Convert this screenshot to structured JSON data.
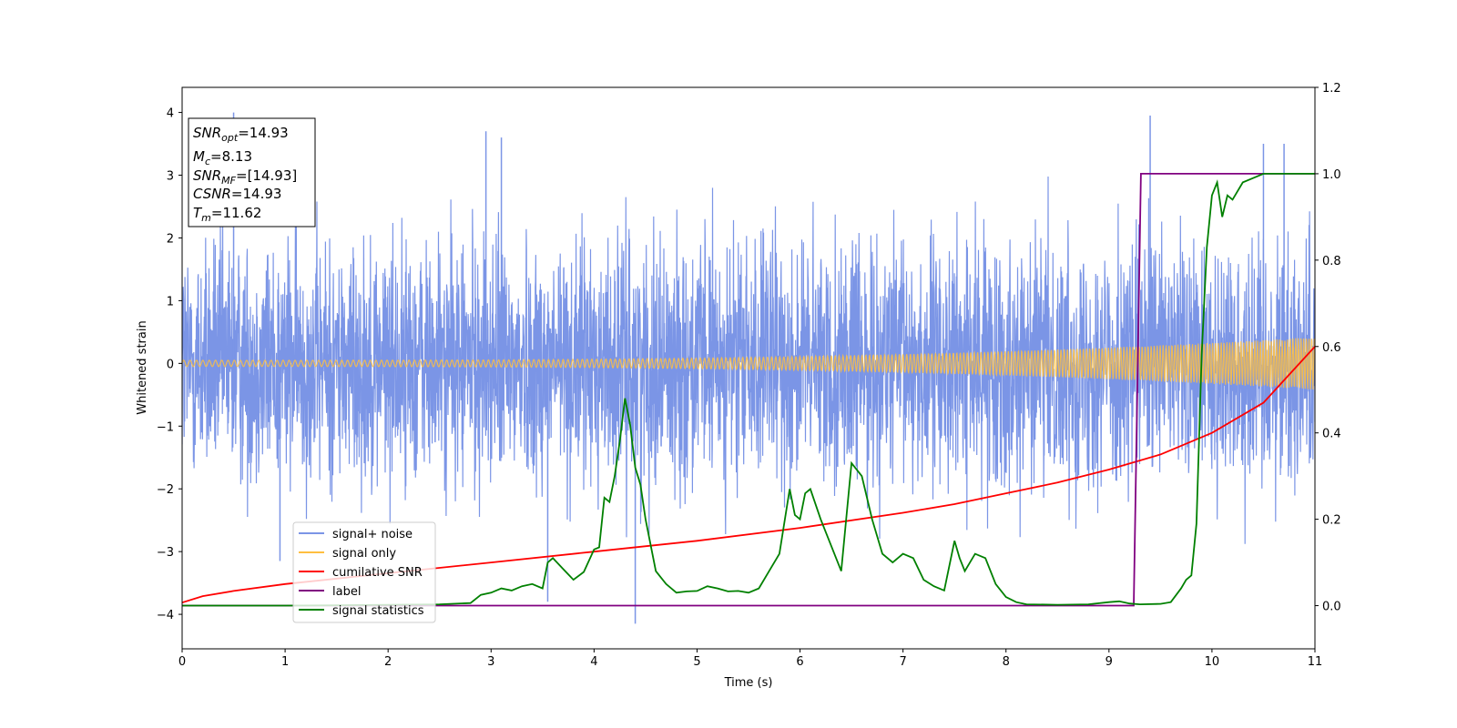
{
  "chart_data": {
    "type": "line",
    "xlabel": "Time (s)",
    "ylabel": "Whitened strain",
    "xlim": [
      0,
      11
    ],
    "ylim": [
      -4.55,
      4.4
    ],
    "y2lim": [
      -0.1,
      1.2
    ],
    "x_ticks": [
      "0",
      "1",
      "2",
      "3",
      "4",
      "5",
      "6",
      "7",
      "8",
      "9",
      "10",
      "11"
    ],
    "y_ticks": [
      "−4",
      "−3",
      "−2",
      "−1",
      "0",
      "1",
      "2",
      "3",
      "4"
    ],
    "y2_ticks": [
      "0.0",
      "0.2",
      "0.4",
      "0.6",
      "0.8",
      "1.0",
      "1.2"
    ],
    "grid": false,
    "legend_position": "lower-left",
    "stats_box": [
      {
        "name": "SNR",
        "sub": "opt",
        "value": "=14.93"
      },
      {
        "name": "M",
        "sub": "c",
        "value": "=8.13"
      },
      {
        "name": "SNR",
        "sub": "MF",
        "value": "=[14.93]"
      },
      {
        "name": "CSNR",
        "sub": "",
        "value": "=14.93"
      },
      {
        "name": "T",
        "sub": "m",
        "value": "=11.62"
      }
    ],
    "series": [
      {
        "name": "signal+ noise",
        "axis": "left",
        "color": "#7b95e6",
        "kind": "noise",
        "noise_std": 0.95,
        "spike_peaks": [
          [
            0.5,
            4.0
          ],
          [
            2.95,
            3.7
          ],
          [
            3.1,
            3.6
          ],
          [
            9.4,
            3.95
          ],
          [
            10.5,
            3.5
          ],
          [
            10.7,
            3.5
          ],
          [
            4.4,
            -4.15
          ],
          [
            0.95,
            -3.15
          ],
          [
            3.55,
            -3.8
          ]
        ]
      },
      {
        "name": "signal only",
        "axis": "left",
        "color": "#ffbf40",
        "kind": "chirp",
        "amplitude_start": 0.05,
        "amplitude_end": 0.42
      },
      {
        "name": "cumilative SNR",
        "axis": "right",
        "color": "#ff0000",
        "x": [
          0,
          0.2,
          0.5,
          1,
          2,
          3,
          4,
          5,
          6,
          7,
          7.5,
          8,
          8.5,
          9,
          9.5,
          10,
          10.5,
          11
        ],
        "y": [
          0.007,
          0.022,
          0.034,
          0.05,
          0.075,
          0.1,
          0.125,
          0.15,
          0.18,
          0.215,
          0.235,
          0.26,
          0.285,
          0.315,
          0.35,
          0.4,
          0.47,
          0.6
        ]
      },
      {
        "name": "label",
        "axis": "right",
        "color": "#800080",
        "x": [
          0,
          9.24,
          9.31,
          11
        ],
        "y": [
          0,
          0,
          1,
          1
        ]
      },
      {
        "name": "signal statistics",
        "axis": "right",
        "color": "#008000",
        "x": [
          0,
          0.5,
          1,
          1.5,
          2,
          2.5,
          2.8,
          2.9,
          3.0,
          3.1,
          3.2,
          3.3,
          3.4,
          3.5,
          3.55,
          3.6,
          3.7,
          3.8,
          3.9,
          4.0,
          4.05,
          4.1,
          4.15,
          4.2,
          4.25,
          4.3,
          4.35,
          4.4,
          4.45,
          4.5,
          4.6,
          4.7,
          4.8,
          4.9,
          5.0,
          5.1,
          5.2,
          5.3,
          5.4,
          5.5,
          5.6,
          5.7,
          5.8,
          5.9,
          5.95,
          6.0,
          6.05,
          6.1,
          6.2,
          6.3,
          6.4,
          6.5,
          6.6,
          6.7,
          6.8,
          6.9,
          7.0,
          7.1,
          7.2,
          7.3,
          7.4,
          7.5,
          7.55,
          7.6,
          7.7,
          7.8,
          7.9,
          8.0,
          8.1,
          8.2,
          8.5,
          8.8,
          9.0,
          9.1,
          9.2,
          9.3,
          9.5,
          9.6,
          9.7,
          9.75,
          9.8,
          9.85,
          9.9,
          9.95,
          10.0,
          10.05,
          10.1,
          10.15,
          10.2,
          10.3,
          10.4,
          10.5,
          10.6,
          10.8,
          11.0
        ],
        "y": [
          0,
          0,
          0,
          0.001,
          0.002,
          0.003,
          0.006,
          0.025,
          0.03,
          0.04,
          0.035,
          0.045,
          0.05,
          0.04,
          0.1,
          0.11,
          0.085,
          0.06,
          0.078,
          0.13,
          0.135,
          0.25,
          0.24,
          0.3,
          0.38,
          0.48,
          0.42,
          0.32,
          0.28,
          0.2,
          0.08,
          0.05,
          0.03,
          0.033,
          0.034,
          0.045,
          0.04,
          0.033,
          0.034,
          0.03,
          0.04,
          0.08,
          0.12,
          0.27,
          0.21,
          0.2,
          0.26,
          0.27,
          0.2,
          0.14,
          0.08,
          0.33,
          0.3,
          0.2,
          0.12,
          0.1,
          0.12,
          0.11,
          0.06,
          0.045,
          0.035,
          0.15,
          0.11,
          0.08,
          0.12,
          0.11,
          0.05,
          0.02,
          0.008,
          0.003,
          0.002,
          0.003,
          0.008,
          0.01,
          0.005,
          0.003,
          0.004,
          0.008,
          0.04,
          0.06,
          0.07,
          0.19,
          0.58,
          0.83,
          0.95,
          0.98,
          0.9,
          0.95,
          0.94,
          0.98,
          0.99,
          1.0,
          1.0,
          1.0,
          1.0
        ]
      }
    ]
  }
}
